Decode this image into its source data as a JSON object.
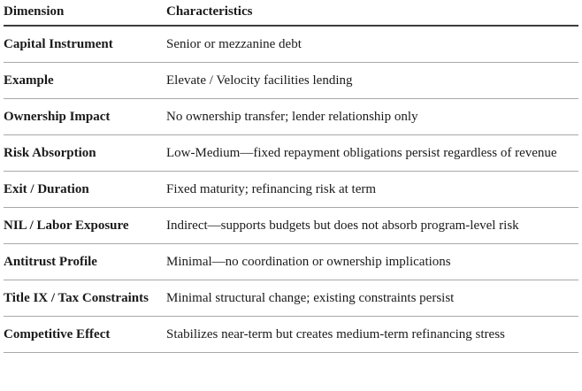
{
  "table": {
    "headers": [
      "Dimension",
      "Characteristics"
    ],
    "rows": [
      {
        "dimension": "Capital Instrument",
        "characteristics": "Senior or mezzanine debt"
      },
      {
        "dimension": "Example",
        "characteristics": "Elevate / Velocity facilities lending"
      },
      {
        "dimension": "Ownership Impact",
        "characteristics": "No ownership transfer; lender relationship only"
      },
      {
        "dimension": "Risk Absorption",
        "characteristics": "Low-Medium—fixed repayment obligations persist regardless of revenue"
      },
      {
        "dimension": "Exit / Duration",
        "characteristics": "Fixed maturity; refinancing risk at term"
      },
      {
        "dimension": "NIL / Labor Exposure",
        "characteristics": "Indirect—supports budgets but does not absorb program-level risk"
      },
      {
        "dimension": "Antitrust Profile",
        "characteristics": "Minimal—no coordination or ownership implications"
      },
      {
        "dimension": "Title IX / Tax Constraints",
        "characteristics": "Minimal structural change; existing constraints persist"
      },
      {
        "dimension": "Competitive Effect",
        "characteristics": "Stabilizes near-term but creates medium-term refinancing stress"
      }
    ],
    "colors": {
      "text": "#1a1a1a",
      "header_rule": "#3d3d3d",
      "row_rule": "#a8a8a8",
      "background": "#ffffff"
    }
  }
}
